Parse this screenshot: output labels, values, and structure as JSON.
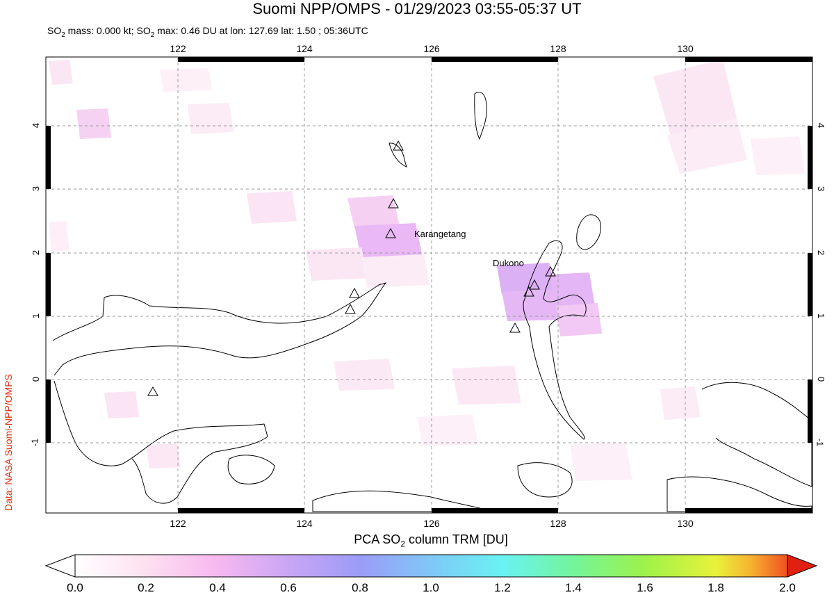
{
  "header": {
    "title": "Suomi NPP/OMPS - 01/29/2023 03:55-05:37 UT",
    "subtitle_parts": [
      "SO",
      "2",
      " mass: 0.000 kt; SO",
      "2",
      " max: 0.46 DU at lon: 127.69 lat: 1.50 ; 05:36UTC"
    ]
  },
  "credit": "Data: NASA Suomi-NPP/OMPS",
  "map": {
    "lon_labels": [
      "122",
      "124",
      "126",
      "128",
      "130"
    ],
    "lat_labels": [
      "4",
      "3",
      "2",
      "1",
      "0",
      "-1"
    ],
    "volcanoes": [
      {
        "name": "Karangetang"
      },
      {
        "name": "Dukono"
      }
    ]
  },
  "colorbar": {
    "label_parts": [
      "PCA SO",
      "2",
      " column TRM [DU]"
    ],
    "ticks": [
      "0.0",
      "0.2",
      "0.4",
      "0.6",
      "0.8",
      "1.0",
      "1.2",
      "1.4",
      "1.6",
      "1.8",
      "2.0"
    ],
    "colors": [
      "#ffffff",
      "#fde0f0",
      "#f7b8f0",
      "#c9a6f5",
      "#9b9cf7",
      "#7fc8f7",
      "#6af2f2",
      "#73f59a",
      "#9ef24a",
      "#e8f23a",
      "#f7b030",
      "#f05020",
      "#e02010"
    ]
  }
}
